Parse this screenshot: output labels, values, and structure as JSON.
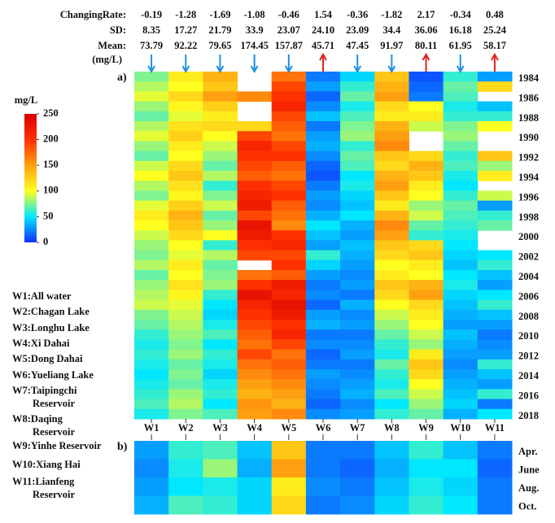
{
  "chart_data": [
    {
      "type": "heatmap",
      "label": "a)",
      "x_categories": [
        "W1",
        "W2",
        "W3",
        "W4",
        "W5",
        "W6",
        "W7",
        "W8",
        "W9",
        "W10",
        "W11"
      ],
      "y_categories": [
        "1984",
        null,
        "1986",
        null,
        "1988",
        null,
        "1990",
        null,
        "1992",
        null,
        "1994",
        null,
        "1996",
        null,
        "1998",
        null,
        "2000",
        null,
        "2002",
        null,
        "2004",
        null,
        "2006",
        null,
        "2008",
        null,
        "2010",
        null,
        "2012",
        null,
        "2014",
        null,
        "2016",
        null,
        "2018"
      ],
      "values": [
        [
          75,
          85,
          95,
          80,
          70,
          85,
          95,
          80,
          70,
          90,
          100,
          85,
          75,
          95,
          110,
          100,
          90,
          80,
          75,
          85,
          70,
          80,
          85,
          90,
          75,
          70,
          60,
          55,
          60,
          55,
          50,
          55,
          60,
          65,
          55
        ],
        [
          110,
          100,
          120,
          105,
          95,
          115,
          125,
          110,
          100,
          120,
          130,
          115,
          105,
          125,
          140,
          130,
          120,
          100,
          95,
          110,
          100,
          115,
          105,
          95,
          90,
          85,
          80,
          75,
          80,
          70,
          75,
          70,
          80,
          85,
          75
        ],
        [
          140,
          130,
          150,
          125,
          110,
          120,
          100,
          90,
          80,
          70,
          85,
          60,
          75,
          90,
          70,
          80,
          100,
          60,
          85,
          70,
          75,
          80,
          60,
          50,
          45,
          55,
          65,
          50,
          60,
          55,
          45,
          55,
          60,
          50,
          65
        ],
        [
          null,
          null,
          160,
          null,
          null,
          120,
          190,
          210,
          200,
          190,
          180,
          200,
          210,
          220,
          190,
          230,
          220,
          200,
          190,
          null,
          170,
          200,
          230,
          210,
          200,
          190,
          180,
          170,
          190,
          170,
          160,
          150,
          140,
          155,
          150
        ],
        [
          170,
          190,
          200,
          210,
          190,
          180,
          170,
          190,
          200,
          180,
          170,
          190,
          200,
          180,
          170,
          160,
          200,
          210,
          190,
          200,
          180,
          220,
          210,
          230,
          220,
          200,
          210,
          190,
          170,
          180,
          170,
          160,
          150,
          140,
          160
        ],
        [
          20,
          30,
          15,
          25,
          40,
          20,
          30,
          35,
          25,
          15,
          10,
          20,
          30,
          25,
          35,
          50,
          40,
          30,
          60,
          45,
          30,
          20,
          25,
          15,
          30,
          35,
          20,
          25,
          15,
          20,
          30,
          25,
          20,
          15,
          25
        ],
        [
          45,
          60,
          70,
          55,
          65,
          75,
          80,
          60,
          70,
          65,
          50,
          55,
          45,
          40,
          50,
          35,
          30,
          40,
          35,
          30,
          25,
          30,
          20,
          35,
          25,
          30,
          20,
          25,
          30,
          20,
          25,
          30,
          35,
          25,
          30
        ],
        [
          130,
          140,
          150,
          120,
          110,
          140,
          150,
          160,
          130,
          120,
          140,
          150,
          130,
          110,
          140,
          160,
          150,
          130,
          120,
          100,
          110,
          130,
          120,
          100,
          90,
          80,
          70,
          60,
          55,
          70,
          60,
          55,
          65,
          50,
          60
        ],
        [
          10,
          15,
          20,
          100,
          110,
          90,
          null,
          null,
          120,
          140,
          130,
          110,
          100,
          80,
          90,
          70,
          60,
          120,
          130,
          110,
          100,
          140,
          150,
          120,
          110,
          100,
          90,
          80,
          110,
          130,
          120,
          100,
          90,
          80,
          70
        ],
        [
          60,
          70,
          65,
          55,
          60,
          75,
          80,
          70,
          60,
          65,
          55,
          50,
          60,
          70,
          65,
          60,
          55,
          50,
          45,
          40,
          50,
          55,
          45,
          40,
          35,
          30,
          40,
          35,
          30,
          25,
          30,
          35,
          40,
          45,
          35
        ],
        [
          30,
          120,
          null,
          40,
          60,
          100,
          null,
          null,
          130,
          80,
          110,
          null,
          90,
          30,
          60,
          70,
          null,
          null,
          50,
          60,
          40,
          30,
          50,
          60,
          40,
          30,
          20,
          25,
          30,
          60,
          40,
          30,
          60,
          20,
          50
        ]
      ]
    },
    {
      "type": "heatmap",
      "label": "b)",
      "y_categories": [
        "Apr.",
        "June",
        "Aug.",
        "Oct."
      ],
      "values": [
        [
          30,
          25,
          30,
          35
        ],
        [
          60,
          55,
          50,
          65
        ],
        [
          65,
          80,
          55,
          60
        ],
        [
          40,
          35,
          45,
          45
        ],
        [
          130,
          150,
          110,
          120
        ],
        [
          20,
          20,
          25,
          20
        ],
        [
          20,
          15,
          20,
          25
        ],
        [
          40,
          35,
          40,
          45
        ],
        [
          60,
          50,
          55,
          60
        ],
        [
          40,
          50,
          45,
          50
        ],
        [
          20,
          15,
          20,
          20
        ]
      ]
    }
  ],
  "stats": {
    "labels": [
      "ChangingRate:",
      "SD:",
      "Mean:",
      "(mg/L)"
    ],
    "changing_rate": [
      "-0.19",
      "-1.28",
      "-1.69",
      "-1.08",
      "-0.46",
      "1.54",
      "-0.36",
      "-1.82",
      "2.17",
      "-0.34",
      "0.48"
    ],
    "sd": [
      "8.35",
      "17.27",
      "21.79",
      "33.9",
      "23.07",
      "24.10",
      "23.09",
      "34.4",
      "36.06",
      "16.18",
      "25.24"
    ],
    "mean": [
      "73.79",
      "92.22",
      "79.65",
      "174.45",
      "157.87",
      "45.71",
      "47.45",
      "91.97",
      "80.11",
      "61.95",
      "58.17"
    ],
    "arrow_colors": {
      "down": "#1e8fe0",
      "up": "#e0201e"
    }
  },
  "colorbar": {
    "title": "mg/L",
    "lim": [
      0,
      250
    ],
    "ticks": [
      0,
      50,
      100,
      150,
      200,
      250
    ],
    "colors": [
      "#1030ff",
      "#00e8ff",
      "#ffff20",
      "#ffa010",
      "#ff3000",
      "#d80000"
    ]
  },
  "stations": [
    [
      "W1:All water"
    ],
    [
      "W2:Chagan Lake"
    ],
    [
      "W3:Longhu Lake"
    ],
    [
      "W4:Xi Dahai"
    ],
    [
      "W5:Dong Dahai"
    ],
    [
      "W6:Yueliang Lake"
    ],
    [
      "W7:Taipingchi",
      "Reservoir"
    ],
    [
      "W8:Daqing",
      "Reservoir"
    ],
    [
      "W9:Yinhe Reservoir"
    ],
    [
      "W10:Xiang Hai"
    ],
    [
      "W11:Lianfeng",
      "Reservoir"
    ]
  ]
}
